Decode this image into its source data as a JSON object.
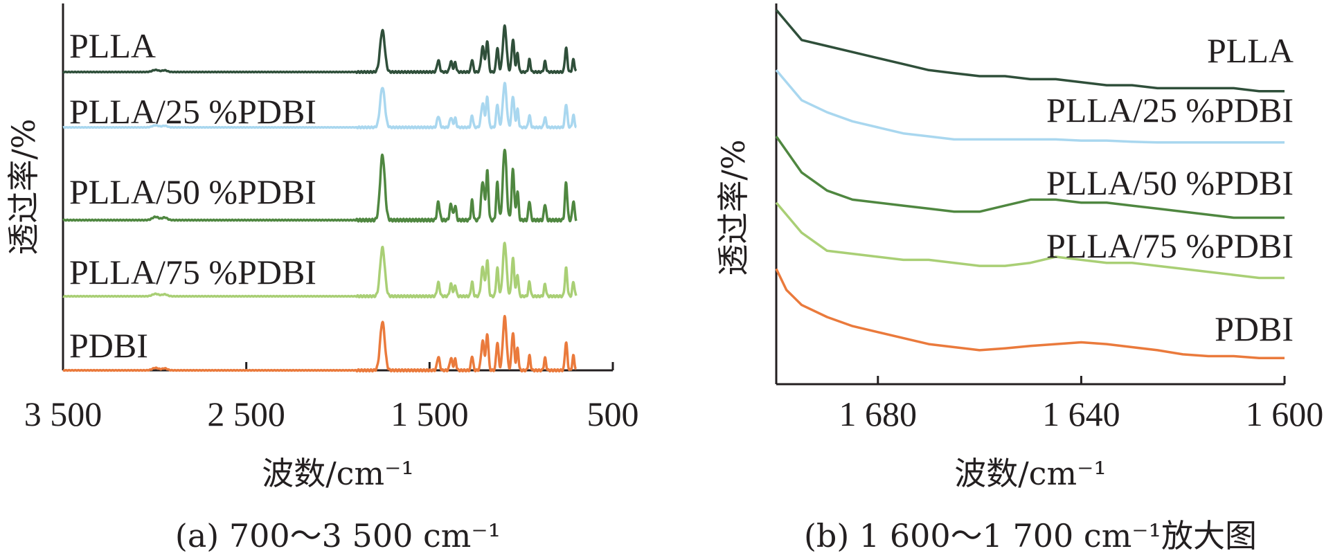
{
  "chart_data": [
    {
      "type": "line",
      "panel": "a",
      "caption": "(a) 700～3 500 cm⁻¹",
      "xlabel": "波数/cm⁻¹",
      "ylabel": "透过率/%",
      "xlim": [
        3500,
        500
      ],
      "xticks": [
        "3 500",
        "2 500",
        "1 500",
        "500"
      ],
      "xtick_values": [
        3500,
        2500,
        1500,
        500
      ],
      "grid": false,
      "data_range": [
        3500,
        700
      ],
      "peaks": [
        {
          "x": 2995,
          "h": 0.05,
          "w": 25
        },
        {
          "x": 2945,
          "h": 0.04,
          "w": 20
        },
        {
          "x": 1757,
          "h": 1.0,
          "w": 18
        },
        {
          "x": 1452,
          "h": 0.28,
          "w": 10
        },
        {
          "x": 1383,
          "h": 0.25,
          "w": 10
        },
        {
          "x": 1360,
          "h": 0.23,
          "w": 8
        },
        {
          "x": 1268,
          "h": 0.3,
          "w": 8
        },
        {
          "x": 1210,
          "h": 0.6,
          "w": 12
        },
        {
          "x": 1185,
          "h": 0.75,
          "w": 9
        },
        {
          "x": 1130,
          "h": 0.58,
          "w": 9
        },
        {
          "x": 1090,
          "h": 1.1,
          "w": 14
        },
        {
          "x": 1045,
          "h": 0.78,
          "w": 10
        },
        {
          "x": 1020,
          "h": 0.45,
          "w": 8
        },
        {
          "x": 955,
          "h": 0.3,
          "w": 8
        },
        {
          "x": 870,
          "h": 0.25,
          "w": 8
        },
        {
          "x": 755,
          "h": 0.58,
          "w": 9
        },
        {
          "x": 715,
          "h": 0.3,
          "w": 8
        }
      ],
      "series": [
        {
          "name": "PLLA",
          "color": "#2f4f3a"
        },
        {
          "name": "PLLA/25 %PDBI",
          "color": "#a9d7ef"
        },
        {
          "name": "PLLA/50 %PDBI",
          "color": "#4f8740"
        },
        {
          "name": "PLLA/75 %PDBI",
          "color": "#a9cf75"
        },
        {
          "name": "PDBI",
          "color": "#ea7a3c"
        }
      ]
    },
    {
      "type": "line",
      "panel": "b",
      "caption": "(b) 1 600～1 700 cm⁻¹放大图",
      "xlabel": "波数/cm⁻¹",
      "ylabel": "透过率/%",
      "xlim": [
        1700,
        1600
      ],
      "xticks": [
        "1 680",
        "1 640",
        "1 600"
      ],
      "xtick_values": [
        1680,
        1640,
        1600
      ],
      "grid": false,
      "series": [
        {
          "name": "PLLA",
          "color": "#2f4f3a",
          "x": [
            1700,
            1695,
            1690,
            1685,
            1680,
            1675,
            1670,
            1665,
            1660,
            1655,
            1650,
            1645,
            1640,
            1635,
            1630,
            1625,
            1620,
            1615,
            1610,
            1605,
            1600
          ],
          "y": [
            61,
            56,
            55,
            54,
            53,
            52,
            51,
            50.5,
            50,
            50,
            49.5,
            49.5,
            49,
            48.5,
            48.5,
            48,
            48,
            48,
            48,
            47.5,
            47.5
          ]
        },
        {
          "name": "PLLA/25 %PDBI",
          "color": "#a9d7ef",
          "x": [
            1700,
            1695,
            1690,
            1685,
            1680,
            1675,
            1670,
            1665,
            1660,
            1655,
            1650,
            1645,
            1640,
            1635,
            1630,
            1625,
            1620,
            1615,
            1610,
            1605,
            1600
          ],
          "y": [
            51,
            46,
            44,
            42.5,
            41.5,
            40.5,
            40,
            39.5,
            39.5,
            39.5,
            39.5,
            39.5,
            39.3,
            39.3,
            39.1,
            39,
            39,
            39,
            39,
            39,
            39
          ]
        },
        {
          "name": "PLLA/50 %PDBI",
          "color": "#4f8740",
          "x": [
            1700,
            1695,
            1690,
            1685,
            1680,
            1675,
            1670,
            1665,
            1660,
            1655,
            1650,
            1645,
            1640,
            1635,
            1630,
            1625,
            1620,
            1615,
            1610,
            1605,
            1600
          ],
          "y": [
            40,
            34,
            31,
            29.5,
            29,
            28.5,
            28,
            27.5,
            27.5,
            28.5,
            29.5,
            29.5,
            29,
            29,
            28.5,
            28,
            27.5,
            27,
            26.5,
            26.5,
            26.5
          ]
        },
        {
          "name": "PLLA/75 %PDBI",
          "color": "#a9cf75",
          "x": [
            1700,
            1695,
            1690,
            1685,
            1680,
            1675,
            1670,
            1665,
            1660,
            1655,
            1650,
            1645,
            1640,
            1635,
            1630,
            1625,
            1620,
            1615,
            1610,
            1605,
            1600
          ],
          "y": [
            29,
            24,
            21,
            20.5,
            20,
            19.5,
            19.5,
            19,
            18.5,
            18.5,
            19,
            20,
            19.5,
            19,
            19,
            18.5,
            18,
            17.5,
            17,
            16.5,
            16.5
          ]
        },
        {
          "name": "PDBI",
          "color": "#ea7a3c",
          "x": [
            1700,
            1698,
            1695,
            1690,
            1685,
            1680,
            1675,
            1670,
            1665,
            1660,
            1655,
            1650,
            1645,
            1640,
            1635,
            1630,
            1625,
            1620,
            1615,
            1610,
            1605,
            1600
          ],
          "y": [
            18,
            14.5,
            12,
            10,
            8.5,
            7.5,
            6.5,
            5.5,
            5,
            4.5,
            4.8,
            5.2,
            5.5,
            5.8,
            5.5,
            5,
            4.5,
            3.8,
            3.5,
            3.5,
            3.2,
            3.2
          ]
        }
      ]
    }
  ]
}
